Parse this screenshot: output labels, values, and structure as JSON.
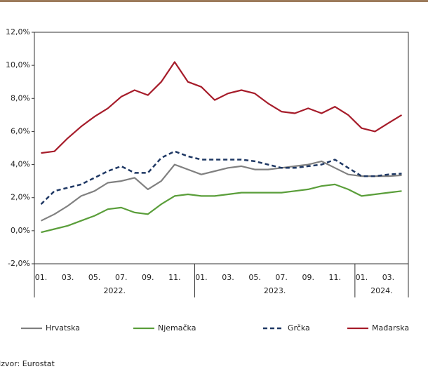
{
  "chart_data": {
    "type": "line",
    "categories": [
      "01.",
      null,
      "03.",
      null,
      "05.",
      null,
      "07.",
      null,
      "09.",
      null,
      "11.",
      null,
      "01.",
      null,
      "03.",
      null,
      "05.",
      null,
      "07.",
      null,
      "09.",
      null,
      "11.",
      null,
      "01.",
      null,
      "03.",
      null
    ],
    "years": [
      "2022.",
      "2023.",
      "2024."
    ],
    "series": [
      {
        "name": "Hrvatska",
        "color": "#808080",
        "dashed": false,
        "values": [
          0.6,
          1.0,
          1.5,
          2.1,
          2.4,
          2.9,
          3.0,
          3.2,
          2.5,
          3.0,
          4.0,
          3.7,
          3.4,
          3.6,
          3.8,
          3.9,
          3.7,
          3.7,
          3.8,
          3.9,
          4.0,
          4.2,
          3.8,
          3.4,
          3.3,
          3.3,
          3.3,
          3.35
        ]
      },
      {
        "name": "Njemačka",
        "color": "#5a9e3a",
        "dashed": false,
        "values": [
          -0.1,
          0.1,
          0.3,
          0.6,
          0.9,
          1.3,
          1.4,
          1.1,
          1.0,
          1.6,
          2.1,
          2.2,
          2.1,
          2.1,
          2.2,
          2.3,
          2.3,
          2.3,
          2.3,
          2.4,
          2.5,
          2.7,
          2.8,
          2.5,
          2.1,
          2.2,
          2.3,
          2.4
        ]
      },
      {
        "name": "Grčka",
        "color": "#1f3864",
        "dashed": true,
        "values": [
          1.6,
          2.4,
          2.6,
          2.8,
          3.2,
          3.6,
          3.9,
          3.5,
          3.5,
          4.4,
          4.8,
          4.5,
          4.3,
          4.3,
          4.3,
          4.3,
          4.2,
          4.0,
          3.8,
          3.8,
          3.9,
          4.0,
          4.3,
          3.8,
          3.3,
          3.3,
          3.4,
          3.45
        ]
      },
      {
        "name": "Mađarska",
        "color": "#a61c2a",
        "dashed": false,
        "values": [
          4.7,
          4.8,
          5.6,
          6.3,
          6.9,
          7.4,
          8.1,
          8.5,
          8.2,
          9.0,
          10.2,
          9.0,
          8.7,
          7.9,
          8.3,
          8.5,
          8.3,
          7.7,
          7.2,
          7.1,
          7.4,
          7.1,
          7.5,
          7.0,
          6.2,
          6.0,
          6.5,
          7.0
        ]
      }
    ],
    "ylim": [
      -2,
      12
    ],
    "yticks": [
      {
        "value": -2,
        "label": "-2,0%"
      },
      {
        "value": 0,
        "label": "0,0%"
      },
      {
        "value": 2,
        "label": "2,0%"
      },
      {
        "value": 4,
        "label": "4,0%"
      },
      {
        "value": 6,
        "label": "6,0%"
      },
      {
        "value": 8,
        "label": "8,0%"
      },
      {
        "value": 10,
        "label": "10,0%"
      },
      {
        "value": 12,
        "label": "12,0%"
      }
    ],
    "grid": false,
    "source": "Izvor: Eurostat"
  }
}
